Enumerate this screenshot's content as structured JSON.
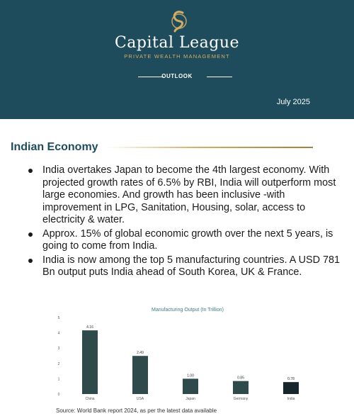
{
  "header": {
    "brand": "Capital League",
    "tagline": "PRIVATE WEALTH MANAGEMENT",
    "section": "OUTLOOK",
    "date": "July 2025",
    "colors": {
      "background": "#1f4c5c",
      "gold": "#d4ad63"
    }
  },
  "main": {
    "heading": "Indian Economy",
    "bullets": [
      "India overtakes Japan to become the 4th largest economy. With projected growth rates of 6.5% by RBI, India will outperform most large economies. And growth has been inclusive -with improvement in LPG, Sanitation, Housing, solar, access to electricity & water.",
      "Approx. 15% of global economic growth over the next 5 years, is going to come from India.",
      "India is now among the top 5 manufacturing countries. A USD 781 Bn output puts India ahead of South Korea, UK & France."
    ]
  },
  "chart_data": {
    "type": "bar",
    "title": "Manufacturing Output (In Trillion)",
    "categories": [
      "China",
      "USA",
      "Japan",
      "Germany",
      "India"
    ],
    "values": [
      4.16,
      2.49,
      1.0,
      0.85,
      0.78
    ],
    "value_labels": [
      "4.16",
      "2.49",
      "1.00",
      "0.85",
      "0.78"
    ],
    "yticks": [
      "5",
      "4",
      "3",
      "2",
      "1",
      "0"
    ],
    "ylim": [
      0,
      5
    ],
    "grid": false,
    "colors": {
      "bars": "#2e4a4a",
      "highlight": "#16262b"
    }
  },
  "footer": {
    "source": "Source: World Bank report 2024, as per the latest data available"
  }
}
